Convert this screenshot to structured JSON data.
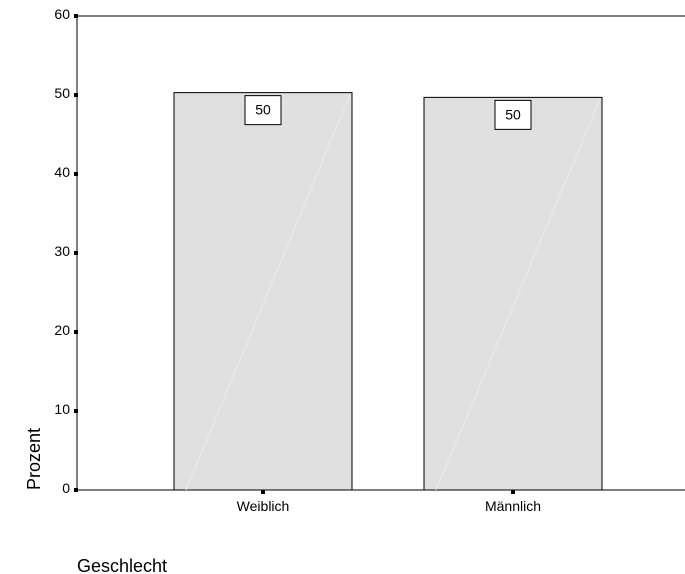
{
  "chart_data": {
    "type": "bar",
    "categories": [
      "Weiblich",
      "Männlich"
    ],
    "values": [
      50.3,
      49.7
    ],
    "data_labels": [
      "50",
      "50"
    ],
    "title": "",
    "xlabel": "Geschlecht",
    "ylabel": "Prozent",
    "ylim": [
      0,
      60
    ],
    "yticks": [
      "0",
      "10",
      "20",
      "30",
      "40",
      "50",
      "60"
    ],
    "grid": false,
    "legend": "none",
    "bar_color": "#e0e0e0",
    "bar_edge_color": "#000000"
  }
}
